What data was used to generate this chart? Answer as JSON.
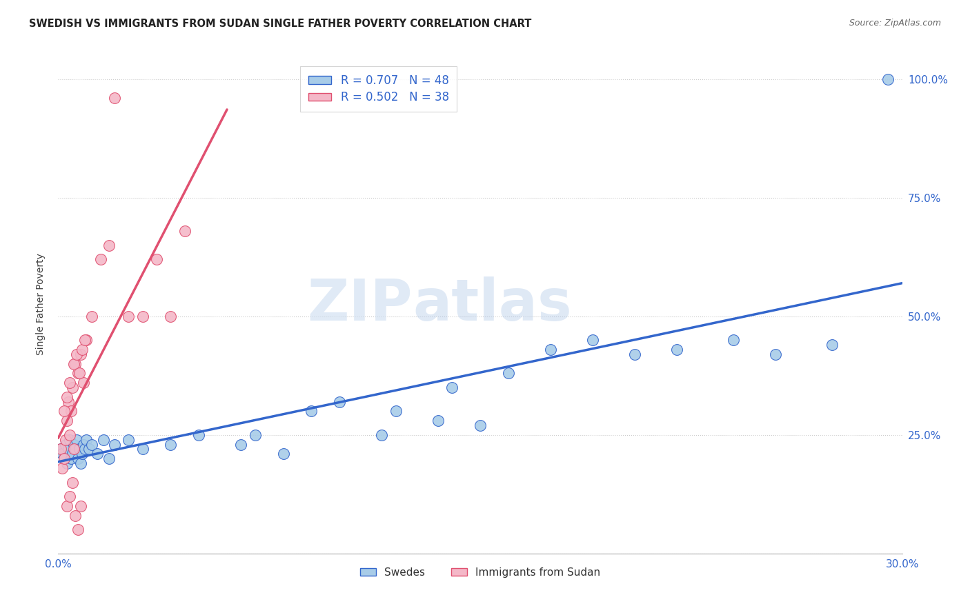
{
  "title": "SWEDISH VS IMMIGRANTS FROM SUDAN SINGLE FATHER POVERTY CORRELATION CHART",
  "source": "Source: ZipAtlas.com",
  "ylabel_label": "Single Father Poverty",
  "r_blue": 0.707,
  "n_blue": 48,
  "r_pink": 0.502,
  "n_pink": 38,
  "watermark_zip": "ZIP",
  "watermark_atlas": "atlas",
  "blue_color": "#a8cce8",
  "pink_color": "#f4b8c8",
  "blue_line_color": "#3366cc",
  "pink_line_color": "#e05070",
  "legend_blue_label": "Swedes",
  "legend_pink_label": "Immigrants from Sudan",
  "swedes_x": [
    0.1,
    0.15,
    0.2,
    0.25,
    0.3,
    0.35,
    0.4,
    0.45,
    0.5,
    0.55,
    0.6,
    0.65,
    0.7,
    0.75,
    0.8,
    0.85,
    0.9,
    0.95,
    1.0,
    1.1,
    1.2,
    1.4,
    1.6,
    1.8,
    2.0,
    2.5,
    3.0,
    4.0,
    5.0,
    6.5,
    7.0,
    8.0,
    9.0,
    10.0,
    11.5,
    12.0,
    13.5,
    14.0,
    15.0,
    16.0,
    17.5,
    19.0,
    20.5,
    22.0,
    24.0,
    25.5,
    27.5,
    29.5
  ],
  "swedes_y": [
    22,
    21,
    20,
    23,
    19,
    22,
    24,
    20,
    21,
    23,
    22,
    24,
    20,
    22,
    19,
    21,
    23,
    22,
    24,
    22,
    23,
    21,
    24,
    20,
    23,
    24,
    22,
    23,
    25,
    23,
    25,
    21,
    30,
    32,
    25,
    30,
    28,
    35,
    27,
    38,
    43,
    45,
    42,
    43,
    45,
    42,
    44,
    100
  ],
  "sudan_x": [
    0.1,
    0.15,
    0.2,
    0.25,
    0.3,
    0.35,
    0.4,
    0.45,
    0.5,
    0.55,
    0.6,
    0.7,
    0.8,
    0.9,
    1.0,
    1.2,
    1.5,
    1.8,
    2.0,
    2.5,
    3.0,
    3.5,
    4.0,
    4.5,
    0.3,
    0.4,
    0.5,
    0.6,
    0.7,
    0.8,
    0.2,
    0.3,
    0.4,
    0.55,
    0.65,
    0.75,
    0.85,
    0.95
  ],
  "sudan_y": [
    22,
    18,
    20,
    24,
    28,
    32,
    25,
    30,
    35,
    22,
    40,
    38,
    42,
    36,
    45,
    50,
    62,
    65,
    96,
    50,
    50,
    62,
    50,
    68,
    10,
    12,
    15,
    8,
    5,
    10,
    30,
    33,
    36,
    40,
    42,
    38,
    43,
    45
  ]
}
